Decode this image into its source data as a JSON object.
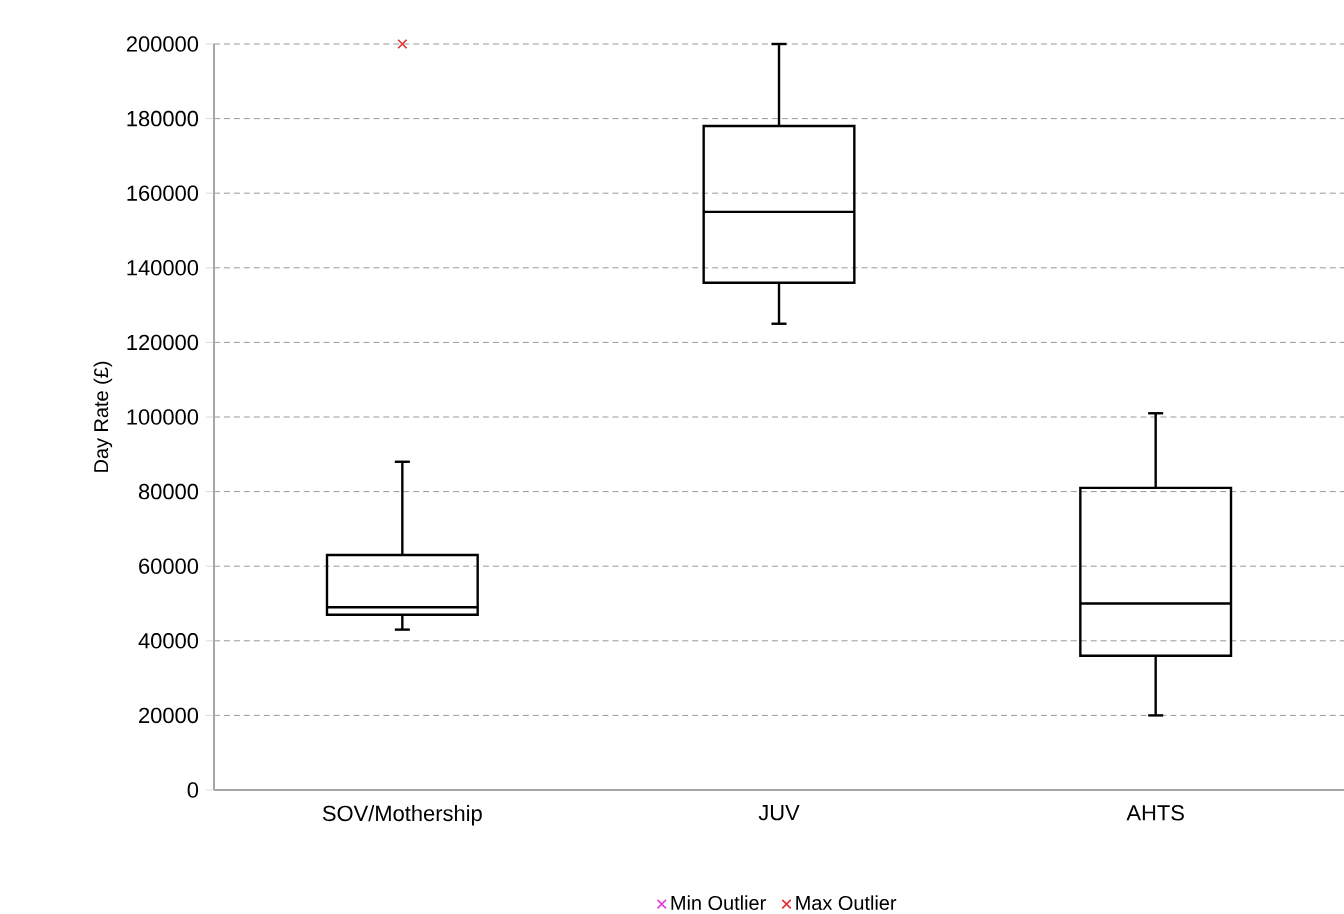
{
  "chart_data": {
    "type": "box",
    "ylabel": "Day Rate (£)",
    "categories": [
      "SOV/Mothership",
      "JUV",
      "AHTS"
    ],
    "boxes": [
      {
        "low": 43000,
        "q1": 47000,
        "median": 49000,
        "q3": 63000,
        "high": 88000
      },
      {
        "low": 125000,
        "q1": 136000,
        "median": 155000,
        "q3": 178000,
        "high": 200000
      },
      {
        "low": 20000,
        "q1": 36000,
        "median": 50000,
        "q3": 81000,
        "high": 101000
      }
    ],
    "series": [
      {
        "name": "Min Outlier",
        "type": "scatter",
        "color": "#e040d8",
        "values": [
          null,
          null,
          null
        ]
      },
      {
        "name": "Max Outlier",
        "type": "scatter",
        "color": "#e03030",
        "values": [
          200000,
          null,
          null
        ]
      }
    ],
    "ylim": [
      0,
      200000
    ],
    "yticks": [
      0,
      20000,
      40000,
      60000,
      80000,
      100000,
      120000,
      140000,
      160000,
      180000,
      200000
    ],
    "grid": "y",
    "legend": "bottom",
    "marker": "cross"
  }
}
